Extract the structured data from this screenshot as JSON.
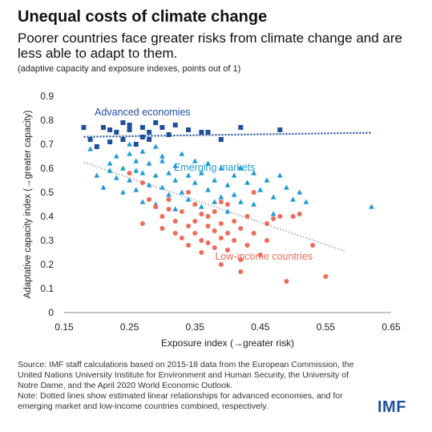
{
  "header": {
    "title": "Unequal costs of climate change",
    "subtitle": "Poorer countries face greater risks from climate change and are less able to adapt to them.",
    "note": "(adaptive capacity and exposure indexes, points out of 1)"
  },
  "source": {
    "text": "Source: IMF staff calculations based on 2015-18 data from the European Commission, the United Nations University Institute for Environment and Human Security, the University of Notre Dame, and the April 2020 World Economic Outlook.",
    "note": "Note: Dotted lines show estimated linear relationships for advanced economies, and for emerging market and low-income countries combined, respectively."
  },
  "logo": "IMF",
  "colors": {
    "advanced": "#1f4e9d",
    "emerging": "#1f9ad6",
    "low_income": "#ef6b5b",
    "trend_emerging_low": "#a6a6a6"
  },
  "chart_data": {
    "type": "scatter",
    "xlabel": "Exposure index (→greater risk)",
    "ylabel": "Adaptative capacity index (→greater capacity)",
    "xlim": [
      0.15,
      0.65
    ],
    "ylim": [
      0,
      0.9
    ],
    "xticks": [
      "0.15",
      "0.25",
      "0.35",
      "0.45",
      "0.55",
      "0.65"
    ],
    "yticks": [
      "0",
      "0.1",
      "0.2",
      "0.3",
      "0.4",
      "0.5",
      "0.6",
      "0.7",
      "0.8",
      "0.9"
    ],
    "grid": false,
    "series": [
      {
        "name": "Advanced economies",
        "marker": "square",
        "points": [
          [
            0.18,
            0.77
          ],
          [
            0.19,
            0.72
          ],
          [
            0.2,
            0.69
          ],
          [
            0.21,
            0.77
          ],
          [
            0.22,
            0.76
          ],
          [
            0.22,
            0.71
          ],
          [
            0.23,
            0.75
          ],
          [
            0.24,
            0.79
          ],
          [
            0.24,
            0.72
          ],
          [
            0.25,
            0.78
          ],
          [
            0.25,
            0.76
          ],
          [
            0.26,
            0.7
          ],
          [
            0.27,
            0.77
          ],
          [
            0.27,
            0.73
          ],
          [
            0.28,
            0.75
          ],
          [
            0.28,
            0.72
          ],
          [
            0.29,
            0.79
          ],
          [
            0.3,
            0.77
          ],
          [
            0.31,
            0.74
          ],
          [
            0.32,
            0.78
          ],
          [
            0.34,
            0.76
          ],
          [
            0.36,
            0.75
          ],
          [
            0.37,
            0.75
          ],
          [
            0.39,
            0.72
          ],
          [
            0.42,
            0.77
          ],
          [
            0.48,
            0.76
          ]
        ]
      },
      {
        "name": "Emerging markets",
        "marker": "triangle",
        "points": [
          [
            0.19,
            0.68
          ],
          [
            0.2,
            0.57
          ],
          [
            0.21,
            0.52
          ],
          [
            0.22,
            0.59
          ],
          [
            0.23,
            0.65
          ],
          [
            0.23,
            0.56
          ],
          [
            0.24,
            0.6
          ],
          [
            0.24,
            0.5
          ],
          [
            0.25,
            0.66
          ],
          [
            0.25,
            0.55
          ],
          [
            0.26,
            0.63
          ],
          [
            0.26,
            0.51
          ],
          [
            0.27,
            0.67
          ],
          [
            0.27,
            0.58
          ],
          [
            0.27,
            0.46
          ],
          [
            0.28,
            0.62
          ],
          [
            0.28,
            0.53
          ],
          [
            0.29,
            0.69
          ],
          [
            0.29,
            0.57
          ],
          [
            0.29,
            0.45
          ],
          [
            0.3,
            0.63
          ],
          [
            0.3,
            0.52
          ],
          [
            0.31,
            0.58
          ],
          [
            0.31,
            0.49
          ],
          [
            0.32,
            0.61
          ],
          [
            0.32,
            0.55
          ],
          [
            0.32,
            0.43
          ],
          [
            0.33,
            0.66
          ],
          [
            0.33,
            0.5
          ],
          [
            0.34,
            0.57
          ],
          [
            0.34,
            0.47
          ],
          [
            0.35,
            0.63
          ],
          [
            0.35,
            0.54
          ],
          [
            0.36,
            0.58
          ],
          [
            0.36,
            0.44
          ],
          [
            0.37,
            0.62
          ],
          [
            0.37,
            0.51
          ],
          [
            0.38,
            0.55
          ],
          [
            0.38,
            0.46
          ],
          [
            0.39,
            0.6
          ],
          [
            0.39,
            0.48
          ],
          [
            0.4,
            0.53
          ],
          [
            0.4,
            0.42
          ],
          [
            0.41,
            0.57
          ],
          [
            0.41,
            0.49
          ],
          [
            0.42,
            0.6
          ],
          [
            0.42,
            0.46
          ],
          [
            0.43,
            0.54
          ],
          [
            0.44,
            0.58
          ],
          [
            0.44,
            0.45
          ],
          [
            0.45,
            0.51
          ],
          [
            0.46,
            0.55
          ],
          [
            0.47,
            0.48
          ],
          [
            0.48,
            0.57
          ],
          [
            0.49,
            0.52
          ],
          [
            0.5,
            0.47
          ],
          [
            0.51,
            0.5
          ],
          [
            0.52,
            0.46
          ],
          [
            0.47,
            0.41
          ],
          [
            0.62,
            0.44
          ],
          [
            0.25,
            0.7
          ],
          [
            0.3,
            0.65
          ],
          [
            0.26,
            0.59
          ],
          [
            0.22,
            0.62
          ]
        ]
      },
      {
        "name": "Low-income countries",
        "marker": "circle",
        "points": [
          [
            0.25,
            0.58
          ],
          [
            0.27,
            0.54
          ],
          [
            0.27,
            0.37
          ],
          [
            0.28,
            0.47
          ],
          [
            0.29,
            0.44
          ],
          [
            0.3,
            0.4
          ],
          [
            0.3,
            0.35
          ],
          [
            0.31,
            0.47
          ],
          [
            0.31,
            0.43
          ],
          [
            0.32,
            0.38
          ],
          [
            0.32,
            0.33
          ],
          [
            0.33,
            0.42
          ],
          [
            0.33,
            0.31
          ],
          [
            0.34,
            0.36
          ],
          [
            0.34,
            0.28
          ],
          [
            0.35,
            0.45
          ],
          [
            0.35,
            0.33
          ],
          [
            0.35,
            0.38
          ],
          [
            0.36,
            0.41
          ],
          [
            0.36,
            0.3
          ],
          [
            0.36,
            0.25
          ],
          [
            0.37,
            0.36
          ],
          [
            0.37,
            0.4
          ],
          [
            0.37,
            0.29
          ],
          [
            0.38,
            0.34
          ],
          [
            0.38,
            0.42
          ],
          [
            0.38,
            0.27
          ],
          [
            0.39,
            0.37
          ],
          [
            0.39,
            0.31
          ],
          [
            0.39,
            0.2
          ],
          [
            0.4,
            0.33
          ],
          [
            0.4,
            0.45
          ],
          [
            0.4,
            0.26
          ],
          [
            0.41,
            0.38
          ],
          [
            0.41,
            0.3
          ],
          [
            0.42,
            0.35
          ],
          [
            0.42,
            0.22
          ],
          [
            0.43,
            0.4
          ],
          [
            0.43,
            0.28
          ],
          [
            0.44,
            0.33
          ],
          [
            0.45,
            0.24
          ],
          [
            0.46,
            0.37
          ],
          [
            0.46,
            0.3
          ],
          [
            0.47,
            0.39
          ],
          [
            0.48,
            0.4
          ],
          [
            0.44,
            0.5
          ],
          [
            0.42,
            0.17
          ],
          [
            0.49,
            0.13
          ],
          [
            0.5,
            0.4
          ],
          [
            0.51,
            0.41
          ],
          [
            0.53,
            0.28
          ],
          [
            0.55,
            0.15
          ],
          [
            0.39,
            0.46
          ],
          [
            0.34,
            0.5
          ]
        ]
      }
    ],
    "trendlines": [
      {
        "series": "Advanced economies",
        "from": [
          0.18,
          0.731
        ],
        "to": [
          0.62,
          0.748
        ]
      },
      {
        "series": "Emerging and low-income",
        "from": [
          0.18,
          0.625
        ],
        "to": [
          0.58,
          0.255
        ]
      }
    ],
    "annotations": [
      {
        "text": "Advanced economies",
        "series": "Advanced economies",
        "at": [
          0.27,
          0.82
        ]
      },
      {
        "text": "Emerging markets",
        "series": "Emerging markets",
        "at": [
          0.38,
          0.59
        ]
      },
      {
        "text": "Low-income countries",
        "series": "Low-income countries",
        "at": [
          0.53,
          0.22
        ]
      }
    ]
  }
}
